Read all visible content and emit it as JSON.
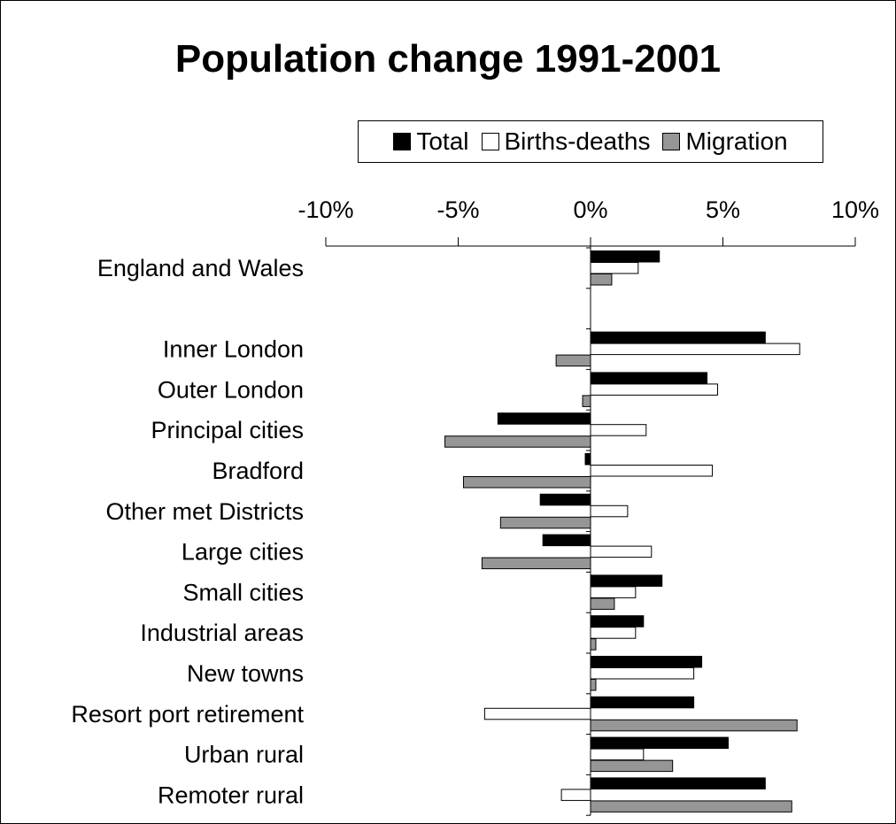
{
  "chart_data": {
    "type": "bar",
    "orientation": "horizontal",
    "title": "Population change 1991-2001",
    "x_ticks": [
      "-10%",
      "-5%",
      "0%",
      "5%",
      "10%"
    ],
    "x_tick_values": [
      -10,
      -5,
      0,
      5,
      10
    ],
    "xlim": [
      -10,
      10
    ],
    "legend_position": "top",
    "categories": [
      "England  and Wales",
      "",
      "Inner London",
      "Outer London",
      "Principal cities",
      "Bradford",
      "Other met Districts",
      "Large cities",
      "Small cities",
      "Industrial areas",
      "New towns",
      "Resort port retirement",
      "Urban rural",
      "Remoter rural"
    ],
    "series": [
      {
        "name": "Total",
        "color": "#000000",
        "values": [
          2.6,
          null,
          6.6,
          4.4,
          -3.5,
          -0.2,
          -1.9,
          -1.8,
          2.7,
          2.0,
          4.2,
          3.9,
          5.2,
          6.6
        ]
      },
      {
        "name": "Births-deaths",
        "color": "#ffffff",
        "values": [
          1.8,
          null,
          7.9,
          4.8,
          2.1,
          4.6,
          1.4,
          2.3,
          1.7,
          1.7,
          3.9,
          -4.0,
          2.0,
          -1.1
        ]
      },
      {
        "name": "Migration",
        "color": "#969696",
        "values": [
          0.8,
          null,
          -1.3,
          -0.3,
          -5.5,
          -4.8,
          -3.4,
          -4.1,
          0.9,
          0.2,
          0.2,
          7.8,
          3.1,
          7.6
        ]
      }
    ]
  }
}
